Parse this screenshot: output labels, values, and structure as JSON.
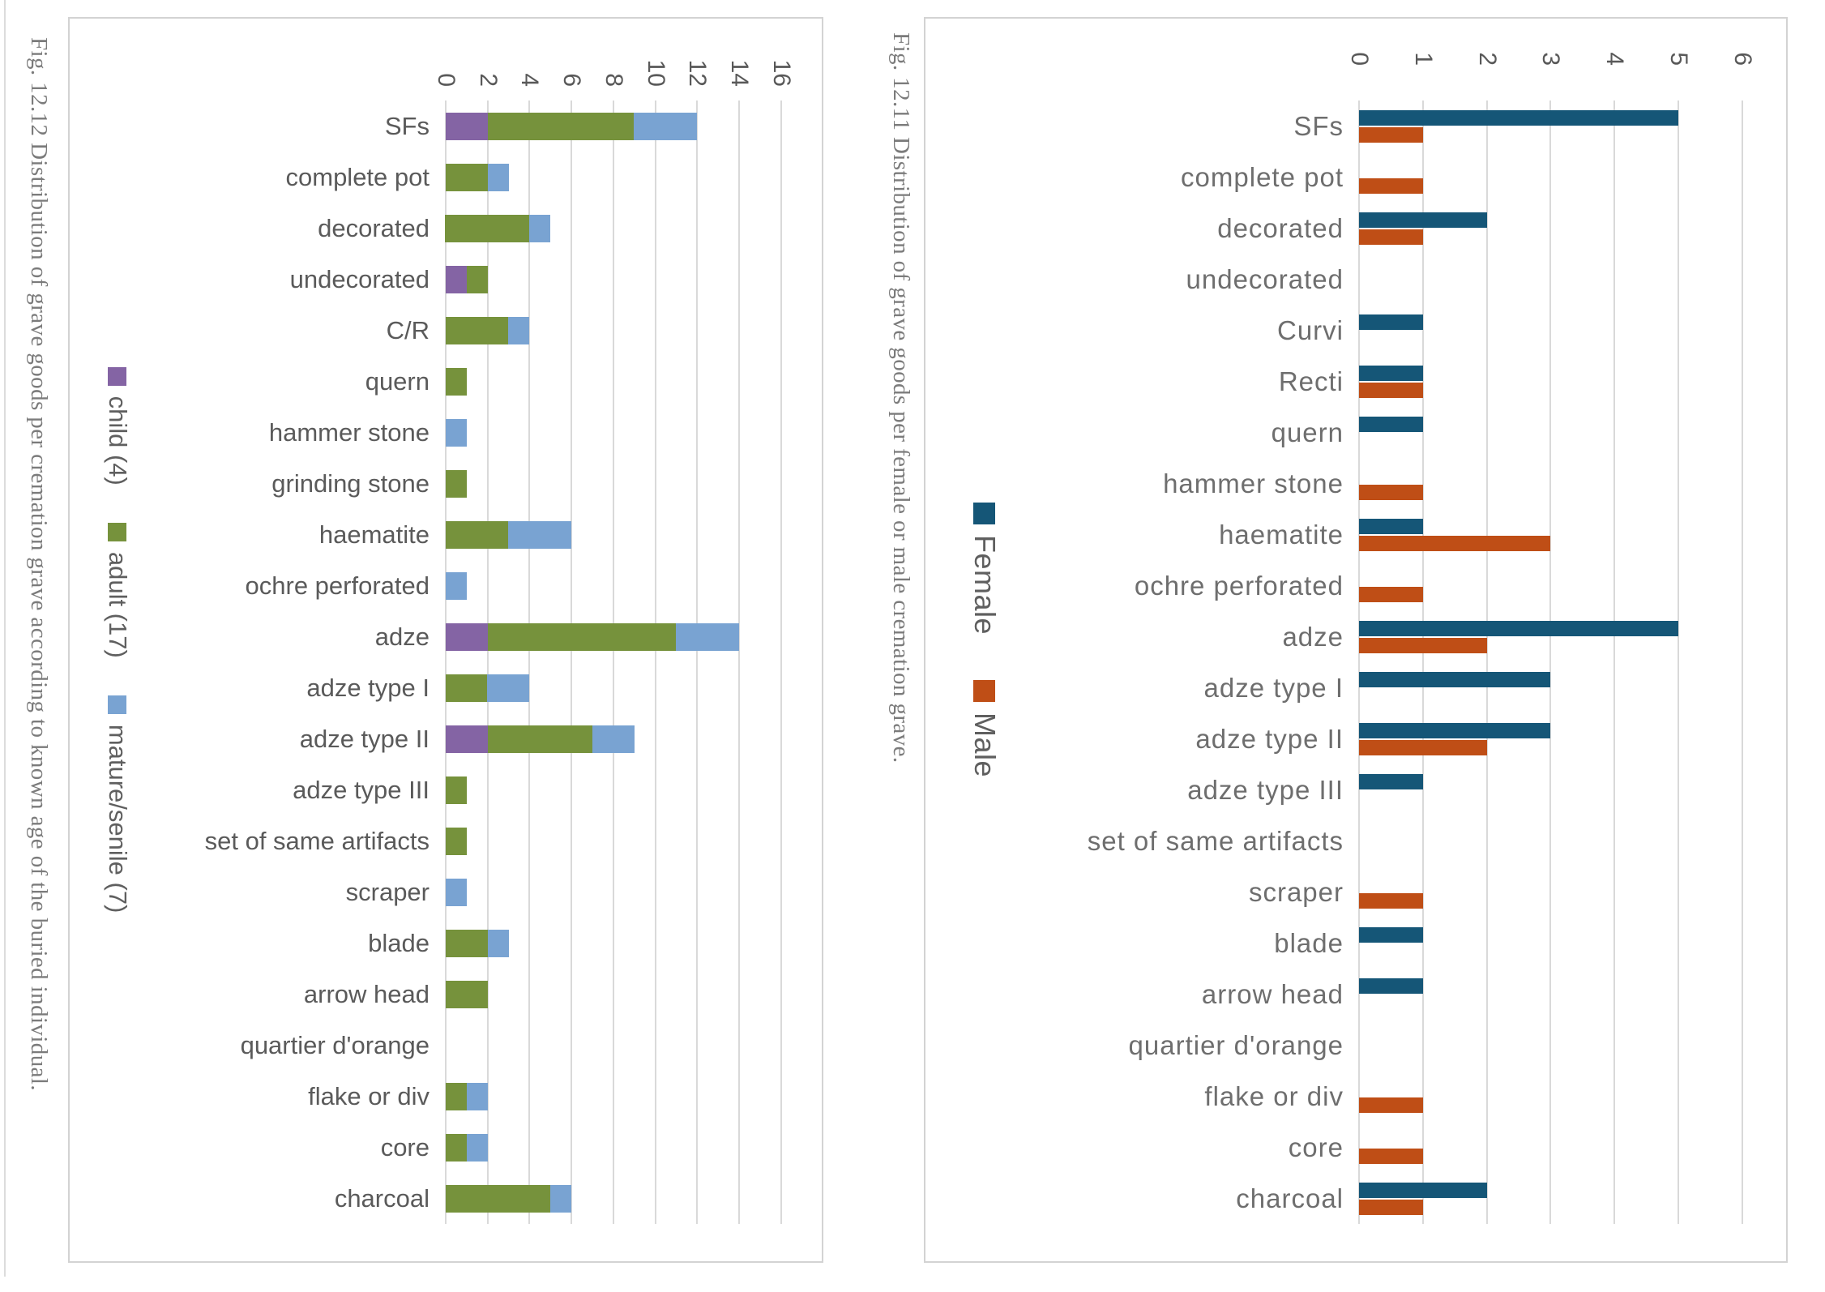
{
  "page": {
    "background": "#ffffff",
    "description_colors": {
      "gridline": "#d9d9d9",
      "panel_border": "#d3d3d3",
      "axis_text": "#595959",
      "caption_text": "#7b7b7b"
    }
  },
  "figures": [
    {
      "caption": "Fig. 12.12 Distribution of grave goods per cremation grave according to known age of the buried individual.",
      "chart_data": {
        "type": "bar",
        "variant": "stacked",
        "rotated_on_page_deg": 90,
        "title": "",
        "xlabel": "",
        "ylabel": "",
        "value_axis": {
          "min": 0,
          "max": 16,
          "step": 2,
          "tick_labels": [
            "0",
            "2",
            "4",
            "6",
            "8",
            "10",
            "12",
            "14",
            "16"
          ]
        },
        "grid": true,
        "legend_position": "bottom-of-unrotated-chart (left edge on page)",
        "categories": [
          "SFs",
          "complete pot",
          "decorated",
          "undecorated",
          "C/R",
          "quern",
          "hammer stone",
          "grinding stone",
          "haematite",
          "ochre perforated",
          "adze",
          "adze type I",
          "adze type II",
          "adze type III",
          "set of same artifacts",
          "scraper",
          "blade",
          "arrow head",
          "quartier d'orange",
          "flake or div",
          "core",
          "charcoal"
        ],
        "series": [
          {
            "name": "child (4)",
            "color": "#8464A4",
            "values": [
              2,
              0,
              0,
              1,
              0,
              0,
              0,
              0,
              0,
              0,
              2,
              0,
              2,
              0,
              0,
              0,
              0,
              0,
              0,
              0,
              0,
              0
            ]
          },
          {
            "name": "adult (17)",
            "color": "#76923C",
            "values": [
              7,
              2,
              4,
              1,
              3,
              1,
              0,
              1,
              3,
              0,
              9,
              2,
              5,
              1,
              1,
              0,
              2,
              2,
              0,
              1,
              1,
              5
            ]
          },
          {
            "name": "mature/senile (7)",
            "color": "#79A3D2",
            "values": [
              3,
              1,
              1,
              0,
              1,
              0,
              1,
              0,
              3,
              1,
              3,
              2,
              2,
              0,
              0,
              1,
              1,
              0,
              0,
              1,
              1,
              1
            ]
          }
        ]
      }
    },
    {
      "caption": "Fig. 12.11 Distribution of grave goods per female or male cremation grave.",
      "chart_data": {
        "type": "bar",
        "variant": "clustered",
        "rotated_on_page_deg": 90,
        "title": "",
        "xlabel": "",
        "ylabel": "",
        "value_axis": {
          "min": 0,
          "max": 6,
          "step": 1,
          "tick_labels": [
            "0",
            "1",
            "2",
            "3",
            "4",
            "5",
            "6"
          ]
        },
        "grid": true,
        "legend_position": "bottom-of-unrotated-chart (left edge on page)",
        "categories": [
          "SFs",
          "complete pot",
          "decorated",
          "undecorated",
          "Curvi",
          "Recti",
          "quern",
          "hammer stone",
          "haematite",
          "ochre perforated",
          "adze",
          "adze type I",
          "adze type II",
          "adze type III",
          "set of same artifacts",
          "scraper",
          "blade",
          "arrow head",
          "quartier d'orange",
          "flake or div",
          "core",
          "charcoal"
        ],
        "series": [
          {
            "name": "Female",
            "color": "#155677",
            "values": [
              5,
              0,
              2,
              0,
              1,
              1,
              1,
              0,
              1,
              0,
              5,
              3,
              3,
              1,
              0,
              0,
              1,
              1,
              0,
              0,
              0,
              2
            ]
          },
          {
            "name": "Male",
            "color": "#BF4E16",
            "values": [
              1,
              1,
              1,
              0,
              0,
              1,
              0,
              1,
              3,
              1,
              2,
              0,
              2,
              0,
              0,
              1,
              0,
              0,
              0,
              1,
              1,
              1
            ]
          }
        ]
      }
    }
  ]
}
